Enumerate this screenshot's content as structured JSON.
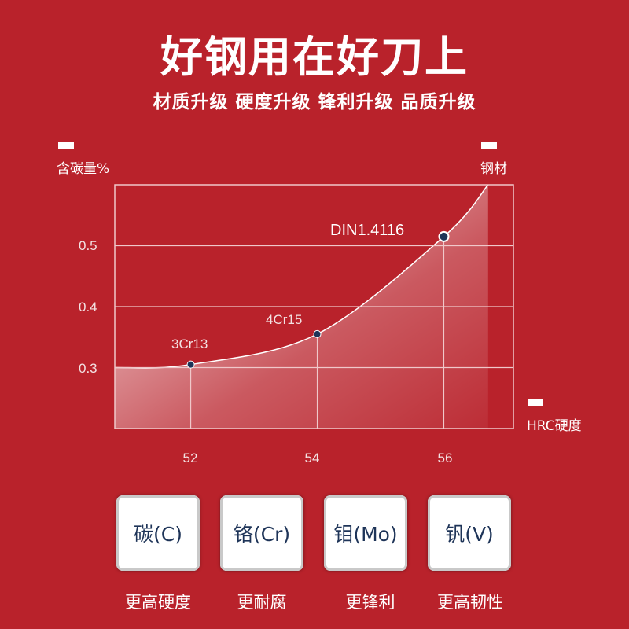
{
  "header": {
    "title": "好钢用在好刀上",
    "subtitle": "材质升级 硬度升级 锋利升级 品质升级"
  },
  "legend": {
    "y_label": "含碳量%",
    "series_label": "钢材",
    "x_label": "HRC硬度"
  },
  "chart_data": {
    "type": "area",
    "title": "",
    "xlabel": "HRC硬度",
    "ylabel": "含碳量%",
    "x_ticks": [
      "52",
      "54",
      "56"
    ],
    "y_ticks": [
      "0.3",
      "0.4",
      "0.5"
    ],
    "xlim": [
      50.8,
      57.1
    ],
    "ylim": [
      0.2,
      0.6
    ],
    "grid": true,
    "points": [
      {
        "name": "3Cr13",
        "x": 52,
        "y": 0.305
      },
      {
        "name": "4Cr15",
        "x": 54,
        "y": 0.355
      },
      {
        "name": "DIN1.4116",
        "x": 56,
        "y": 0.515
      }
    ],
    "curve": [
      [
        50.8,
        0.3
      ],
      [
        52,
        0.305
      ],
      [
        54,
        0.355
      ],
      [
        56,
        0.515
      ],
      [
        56.7,
        0.6
      ]
    ],
    "colors": {
      "background": "#b9222b",
      "point": "#1e3458",
      "grid": "#f0c8ca"
    }
  },
  "elements": [
    {
      "name": "碳(C)",
      "benefit": "更高硬度"
    },
    {
      "name": "铬(Cr)",
      "benefit": "更耐腐"
    },
    {
      "name": "钼(Mo)",
      "benefit": "更锋利"
    },
    {
      "name": "钒(V)",
      "benefit": "更高韧性"
    }
  ]
}
